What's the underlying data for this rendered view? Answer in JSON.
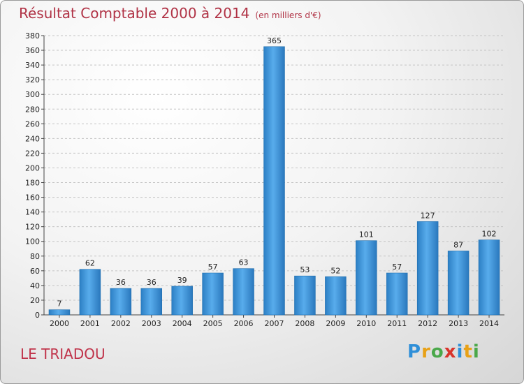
{
  "title": "Résultat Comptable 2000 à 2014",
  "subtitle": "(en milliers d'€)",
  "place": "LE TRIADOU",
  "logo": {
    "letters": [
      "P",
      "r",
      "o",
      "x",
      "i",
      "t",
      "i"
    ],
    "colors": [
      "#2f8fd8",
      "#e8a117",
      "#4aa84a",
      "#d9342b",
      "#2f8fd8",
      "#e8a117",
      "#4aa84a"
    ]
  },
  "chart_data": {
    "type": "bar",
    "title": "Résultat Comptable 2000 à 2014",
    "subtitle": "(en milliers d'€)",
    "categories": [
      "2000",
      "2001",
      "2002",
      "2003",
      "2004",
      "2005",
      "2006",
      "2007",
      "2008",
      "2009",
      "2010",
      "2011",
      "2012",
      "2013",
      "2014"
    ],
    "values": [
      7,
      62,
      36,
      36,
      39,
      57,
      63,
      365,
      53,
      52,
      101,
      57,
      127,
      87,
      102
    ],
    "ylim": [
      0,
      380
    ],
    "yticks": [
      0,
      20,
      40,
      60,
      80,
      100,
      120,
      140,
      160,
      180,
      200,
      220,
      240,
      260,
      280,
      300,
      320,
      340,
      360,
      380
    ],
    "grid": true,
    "bar_color": "#3b92d8"
  }
}
